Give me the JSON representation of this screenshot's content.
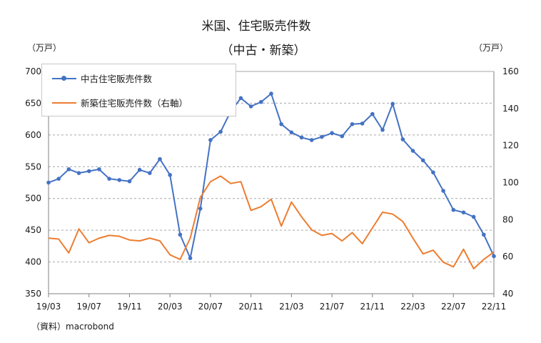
{
  "title_line1": "米国、住宅販売件数",
  "title_line2": "（中古・新築）",
  "unit_left": "（万戸）",
  "unit_right": "（万戸）",
  "source": "（資料）macrobond",
  "colors": {
    "existing": "#4472C4",
    "new": "#ED7D31",
    "grid": "#a6a6a6",
    "axis": "#808080"
  },
  "chart_data": {
    "type": "line",
    "title": "米国、住宅販売件数（中古・新築）",
    "x_tick_labels": [
      "19/03",
      "19/07",
      "19/11",
      "20/03",
      "20/07",
      "20/11",
      "21/03",
      "21/07",
      "21/11",
      "22/03",
      "22/07",
      "22/11"
    ],
    "y_left": {
      "label": "（万戸）",
      "range": [
        350,
        700
      ],
      "ticks": [
        350,
        400,
        450,
        500,
        550,
        600,
        650,
        700
      ]
    },
    "y_right": {
      "label": "（万戸）",
      "range": [
        40,
        160
      ],
      "ticks": [
        40,
        60,
        80,
        100,
        120,
        140,
        160
      ]
    },
    "x_start": "2019-03",
    "series": [
      {
        "name": "中古住宅販売件数",
        "axis": "left",
        "marker": "circle",
        "values": [
          525,
          531,
          546,
          540,
          543,
          546,
          531,
          529,
          527,
          545,
          540,
          562,
          537,
          443,
          406,
          484,
          592,
          605,
          637,
          658,
          645,
          652,
          665,
          617,
          604,
          596,
          592,
          597,
          603,
          598,
          617,
          618,
          633,
          608,
          649,
          593,
          575,
          560,
          541,
          512,
          482,
          478,
          471,
          443,
          409
        ]
      },
      {
        "name": "新築住宅販売件数（右軸）",
        "axis": "right",
        "marker": "none",
        "values": [
          70,
          69.5,
          62,
          75,
          67.5,
          70,
          71.5,
          71,
          69,
          68.5,
          70,
          68.5,
          61,
          58.5,
          70,
          92,
          100.5,
          103.5,
          99.5,
          100.5,
          85,
          87,
          91,
          76.5,
          89.5,
          81.5,
          74.5,
          71.5,
          72.5,
          68.5,
          73,
          67,
          75.5,
          84,
          83,
          79,
          70,
          61.5,
          63.5,
          57,
          54.5,
          64,
          53.5,
          58.5,
          62.5
        ]
      }
    ]
  }
}
